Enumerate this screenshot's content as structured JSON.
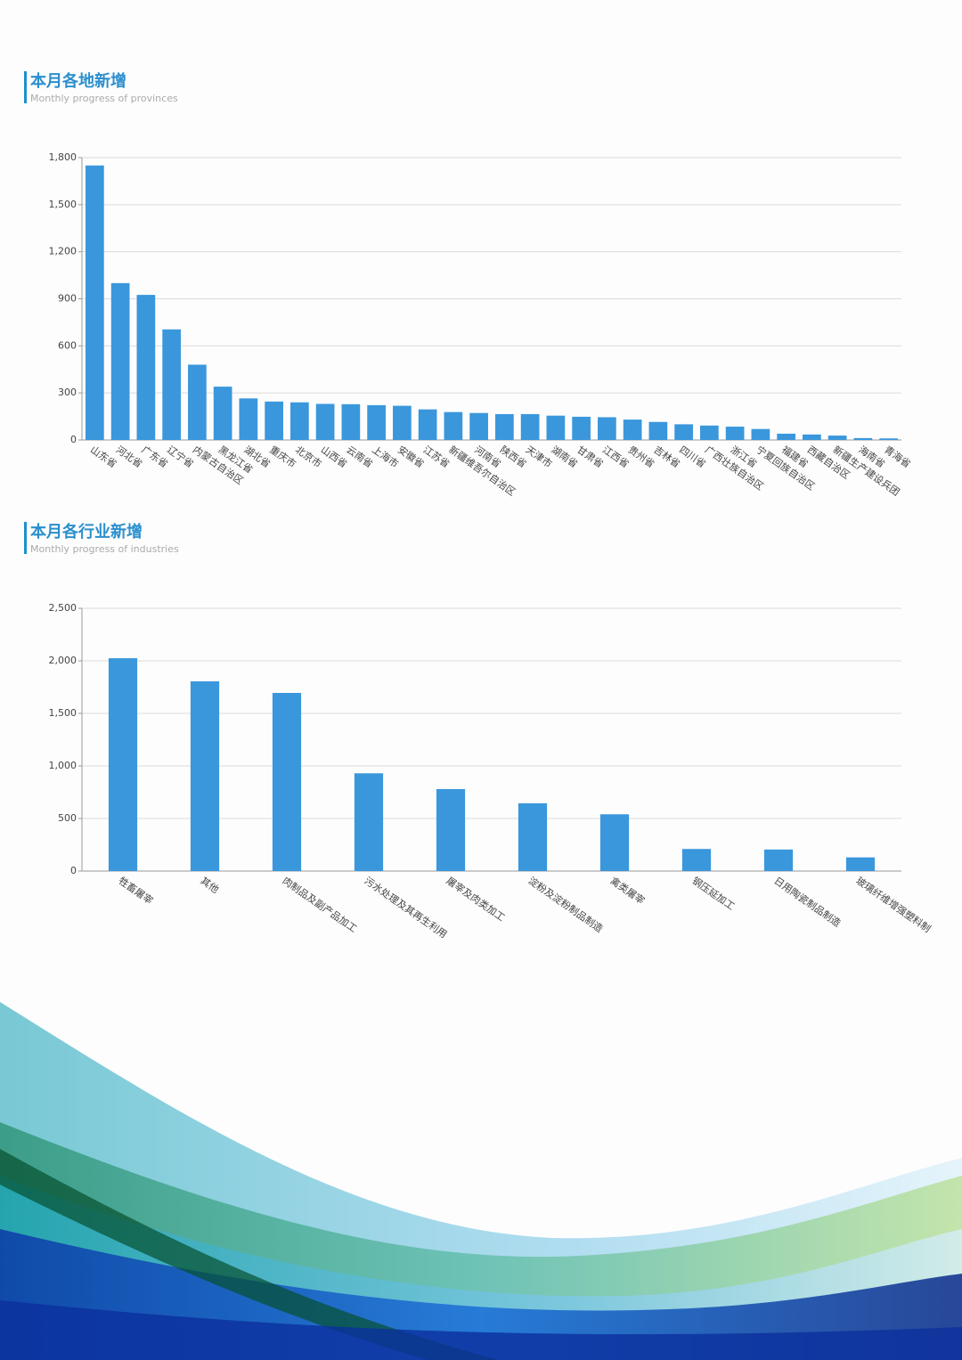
{
  "chart_data": [
    {
      "type": "bar",
      "title": "本月各地新增",
      "subtitle": "Monthly progress of provinces",
      "categories": [
        "山东省",
        "河北省",
        "广东省",
        "辽宁省",
        "内蒙古自治区",
        "黑龙江省",
        "湖北省",
        "重庆市",
        "北京市",
        "山西省",
        "云南省",
        "上海市",
        "安徽省",
        "江苏省",
        "新疆维吾尔自治区",
        "河南省",
        "陕西省",
        "天津市",
        "湖南省",
        "甘肃省",
        "江西省",
        "贵州省",
        "吉林省",
        "四川省",
        "广西壮族自治区",
        "浙江省",
        "宁夏回族自治区",
        "福建省",
        "西藏自治区",
        "新疆生产建设兵团",
        "海南省",
        "青海省"
      ],
      "values": [
        1750,
        1000,
        925,
        705,
        480,
        340,
        265,
        245,
        240,
        230,
        228,
        222,
        218,
        195,
        178,
        172,
        165,
        165,
        155,
        148,
        145,
        130,
        115,
        100,
        92,
        85,
        70,
        40,
        35,
        28,
        12,
        10
      ],
      "color": "#3a97dc",
      "ylim": [
        0,
        1800
      ],
      "yticks": [
        0,
        300,
        600,
        900,
        {
          "value": 1200,
          "label": "1,200"
        },
        {
          "value": 1500,
          "label": "1,500"
        },
        {
          "value": 1800,
          "label": "1,800"
        }
      ],
      "grid": true
    },
    {
      "type": "bar",
      "title": "本月各行业新增",
      "subtitle": "Monthly progress of industries",
      "categories": [
        "牲畜屠宰",
        "其他",
        "肉制品及副产品加工",
        "污水处理及其再生利用",
        "屠宰及肉类加工",
        "淀粉及淀粉制品制造",
        "禽类屠宰",
        "钢压延加工",
        "日用陶瓷制品制造",
        "玻璃纤维增强塑料制"
      ],
      "values": [
        2025,
        1805,
        1695,
        930,
        780,
        645,
        540,
        210,
        205,
        130
      ],
      "color": "#3a97dc",
      "ylim": [
        0,
        2500
      ],
      "yticks": [
        0,
        500,
        {
          "value": 1000,
          "label": "1,000"
        },
        {
          "value": 1500,
          "label": "1,500"
        },
        {
          "value": 2000,
          "label": "2,000"
        },
        {
          "value": 2500,
          "label": "2,500"
        }
      ],
      "grid": true
    }
  ]
}
